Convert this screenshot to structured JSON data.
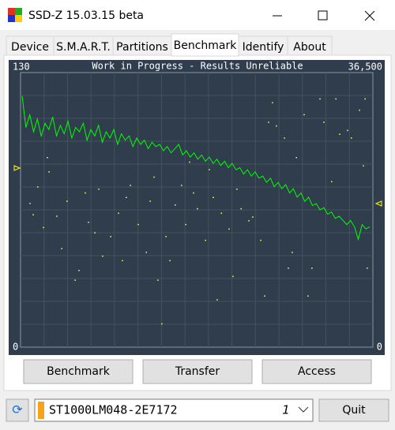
{
  "window": {
    "title": "SSD-Z 15.03.15 beta"
  },
  "tabs": [
    "Device",
    "S.M.A.R.T.",
    "Partitions",
    "Benchmark",
    "Identify",
    "About"
  ],
  "buttons": [
    "Benchmark",
    "Transfer",
    "Access"
  ],
  "drive": {
    "name": "ST1000LM048-2E7172",
    "index": "1"
  },
  "quit": "Quit",
  "chart_data": {
    "type": "line",
    "title": "Work in Progress - Results Unreliable",
    "ylim": [
      0,
      130
    ],
    "yticks": [
      0,
      130
    ],
    "y2lim": [
      0,
      36500
    ],
    "y2ticks": [
      0,
      {
        "value": 36500,
        "label": "36,500"
      }
    ],
    "xlim": [
      0,
      100
    ],
    "grid": true,
    "series": [
      {
        "type": "line",
        "color": "#00ff00",
        "values": [
          119,
          104,
          110,
          102,
          108,
          100,
          106,
          103,
          109,
          100,
          105,
          101,
          107,
          99,
          104,
          102,
          106,
          98,
          103,
          100,
          105,
          97,
          102,
          99,
          103,
          96,
          101,
          98,
          100,
          95,
          99,
          96,
          98,
          94,
          97,
          95,
          96,
          93,
          95,
          92,
          94,
          96,
          91,
          93,
          90,
          92,
          89,
          91,
          88,
          90,
          87,
          89,
          86,
          88,
          85,
          87,
          84,
          85,
          82,
          84,
          81,
          83,
          80,
          81,
          78,
          80,
          76,
          78,
          75,
          77,
          73,
          75,
          71,
          73,
          69,
          71,
          67,
          68,
          65,
          66,
          63,
          64,
          61,
          62,
          60,
          58,
          60,
          57,
          51,
          58,
          56,
          57
        ]
      },
      {
        "type": "scatter",
        "axis": "y2",
        "color": "#ffff66",
        "x": [
          2.7,
          3.6,
          4.9,
          6.5,
          7.6,
          8.1,
          10.3,
          11.7,
          13.2,
          15.5,
          16.6,
          18.4,
          19.3,
          21.1,
          22.2,
          23.3,
          25.6,
          27.8,
          28.9,
          30.0,
          31.2,
          33.4,
          35.7,
          36.8,
          37.9,
          39.0,
          40.1,
          41.3,
          42.4,
          43.9,
          45.7,
          46.9,
          48.0,
          49.1,
          50.2,
          52.5,
          53.6,
          54.7,
          55.8,
          57.0,
          59.2,
          60.3,
          61.4,
          62.6,
          64.8,
          65.9,
          68.2,
          69.3,
          70.4,
          71.5,
          72.6,
          74.9,
          76.0,
          77.1,
          78.3,
          80.5,
          81.6,
          82.7,
          85.0,
          86.1,
          88.3,
          89.5,
          90.6,
          92.8,
          93.9,
          96.2,
          97.3,
          97.8,
          98.4
        ],
        "values": [
          19100,
          17600,
          21300,
          15900,
          25200,
          23300,
          17400,
          13100,
          19400,
          8900,
          10200,
          20500,
          16600,
          15200,
          21000,
          12100,
          14700,
          17800,
          11500,
          19900,
          21500,
          16300,
          12600,
          19400,
          22600,
          8900,
          3100,
          14700,
          11500,
          18900,
          21500,
          16300,
          24600,
          20500,
          18400,
          14200,
          23600,
          19900,
          6300,
          17800,
          15700,
          9400,
          21000,
          18400,
          16800,
          17300,
          14200,
          6800,
          29900,
          32500,
          29400,
          27800,
          10500,
          12600,
          25200,
          30900,
          6800,
          10500,
          33000,
          29900,
          22000,
          33000,
          28300,
          28800,
          27800,
          31500,
          24100,
          33000,
          10500
        ]
      }
    ]
  }
}
